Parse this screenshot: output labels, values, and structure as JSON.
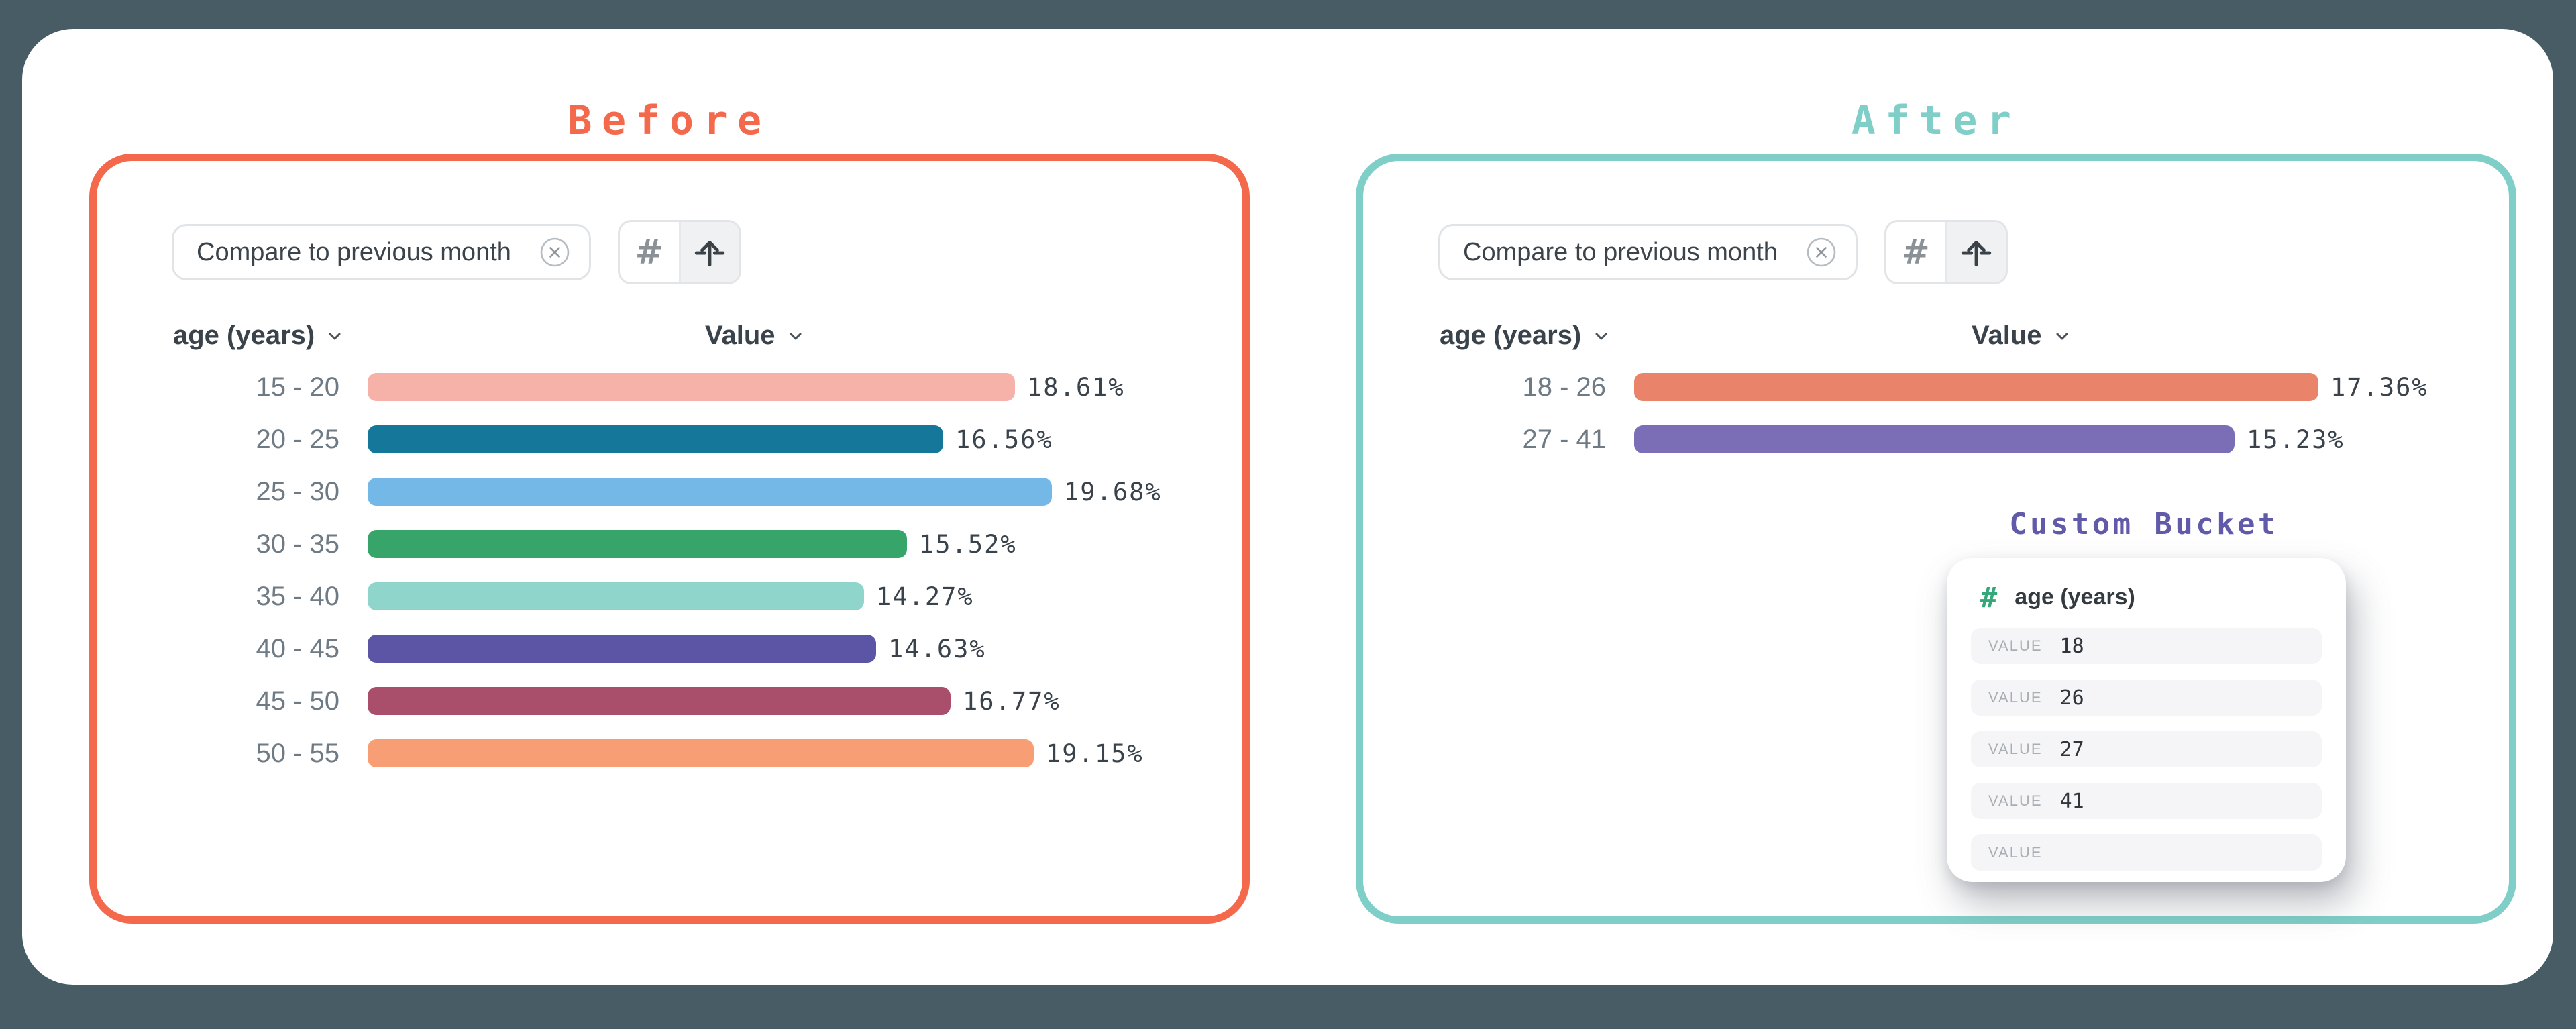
{
  "scene": {
    "background_color": "#475C64",
    "card_color": "#FFFFFF"
  },
  "chart_data": [
    {
      "type": "bar",
      "orientation": "horizontal",
      "title": "Before",
      "xlabel": "Value",
      "ylabel": "age (years)",
      "value_format": "percent",
      "categories": [
        "15 - 20",
        "20 - 25",
        "25 - 30",
        "30 - 35",
        "35 - 40",
        "40 - 45",
        "45 - 50",
        "50 - 55"
      ],
      "values": [
        18.61,
        16.56,
        19.68,
        15.52,
        14.27,
        14.63,
        16.77,
        19.15
      ]
    },
    {
      "type": "bar",
      "orientation": "horizontal",
      "title": "After",
      "xlabel": "Value",
      "ylabel": "age (years)",
      "value_format": "percent",
      "categories": [
        "18 - 26",
        "27 - 41"
      ],
      "values": [
        17.36,
        15.23
      ]
    }
  ],
  "panels": [
    {
      "title": "Before",
      "accent_color": "#F4694C",
      "filter_chip": {
        "label": "Compare to previous month"
      },
      "toolbar": {
        "hash_label": "#"
      },
      "table": {
        "dimension_header": "age (years)",
        "measure_header": "Value",
        "rows": [
          {
            "label": "15 - 20",
            "value": 18.61,
            "display": "18.61%",
            "color": "#F6B1A8"
          },
          {
            "label": "20 - 25",
            "value": 16.56,
            "display": "16.56%",
            "color": "#15789B"
          },
          {
            "label": "25 - 30",
            "value": 19.68,
            "display": "19.68%",
            "color": "#74B8E8"
          },
          {
            "label": "30 - 35",
            "value": 15.52,
            "display": "15.52%",
            "color": "#37A569"
          },
          {
            "label": "35 - 40",
            "value": 14.27,
            "display": "14.27%",
            "color": "#8FD5CB"
          },
          {
            "label": "40 - 45",
            "value": 14.63,
            "display": "14.63%",
            "color": "#5C55A6"
          },
          {
            "label": "45 - 50",
            "value": 16.77,
            "display": "16.77%",
            "color": "#A94E6B"
          },
          {
            "label": "50 - 55",
            "value": 19.15,
            "display": "19.15%",
            "color": "#F89E75"
          }
        ]
      }
    },
    {
      "title": "After",
      "accent_color": "#7FCFC8",
      "filter_chip": {
        "label": "Compare to previous month"
      },
      "toolbar": {
        "hash_label": "#"
      },
      "table": {
        "dimension_header": "age (years)",
        "measure_header": "Value",
        "rows": [
          {
            "label": "18 - 26",
            "value": 17.36,
            "display": "17.36%",
            "color": "#E9846B"
          },
          {
            "label": "27 - 41",
            "value": 15.23,
            "display": "15.23%",
            "color": "#7B6DB6"
          }
        ]
      },
      "custom_bucket": {
        "title": "Custom Bucket",
        "title_color": "#615AA9",
        "field_icon": "#",
        "field_name": "age (years)",
        "rows": [
          {
            "label": "VALUE",
            "value": "18"
          },
          {
            "label": "VALUE",
            "value": "26"
          },
          {
            "label": "VALUE",
            "value": "27"
          },
          {
            "label": "VALUE",
            "value": "41"
          },
          {
            "label": "VALUE",
            "value": ""
          }
        ]
      }
    }
  ]
}
